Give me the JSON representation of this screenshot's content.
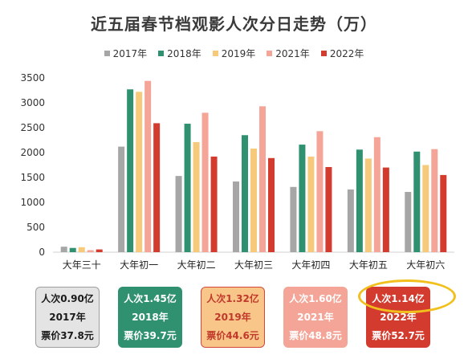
{
  "chart_data": {
    "type": "bar",
    "title": "近五届春节档观影人次分日走势（万）",
    "categories": [
      "大年三十",
      "大年初一",
      "大年初二",
      "大年初三",
      "大年初四",
      "大年初五",
      "大年初六"
    ],
    "series": [
      {
        "name": "2017年",
        "color": "#a6a6a6",
        "values": [
          110,
          2120,
          1530,
          1420,
          1310,
          1260,
          1210
        ]
      },
      {
        "name": "2018年",
        "color": "#2f9170",
        "values": [
          85,
          3270,
          2580,
          2350,
          2160,
          2060,
          2020
        ]
      },
      {
        "name": "2019年",
        "color": "#f7c97a",
        "values": [
          100,
          3220,
          2210,
          2080,
          1920,
          1880,
          1750
        ]
      },
      {
        "name": "2021年",
        "color": "#f4a597",
        "values": [
          40,
          3440,
          2800,
          2930,
          2430,
          2310,
          2070
        ]
      },
      {
        "name": "2022年",
        "color": "#d33b2e",
        "values": [
          55,
          2590,
          1920,
          1890,
          1710,
          1700,
          1550
        ]
      }
    ],
    "ylim": [
      0,
      3500
    ],
    "yticks": [
      "0",
      "500",
      "1000",
      "1500",
      "2000",
      "2500",
      "3000",
      "3500"
    ],
    "grid": false,
    "legend_position": "top"
  },
  "cards": [
    {
      "line1": "人次0.90亿",
      "line2": "2017年",
      "line3": "票价37.8元",
      "bg": "#e4e4e4",
      "border": "#9e9e9e",
      "color": "#1a1a1a"
    },
    {
      "line1": "人次1.45亿",
      "line2": "2018年",
      "line3": "票价39.7元",
      "bg": "#2f9170",
      "border": "#2f9170",
      "color": "#ffffff"
    },
    {
      "line1": "人次1.32亿",
      "line2": "2019年",
      "line3": "票价44.6元",
      "bg": "#f9c68a",
      "border": "#d2473a",
      "color": "#c0392b"
    },
    {
      "line1": "人次1.60亿",
      "line2": "2021年",
      "line3": "票价48.8元",
      "bg": "#f4a597",
      "border": "#f4a597",
      "color": "#ffffff"
    },
    {
      "line1": "人次1.14亿",
      "line2": "2022年",
      "line3": "票价52.7元",
      "bg": "#d33b2e",
      "border": "#d33b2e",
      "color": "#ffffff"
    }
  ]
}
